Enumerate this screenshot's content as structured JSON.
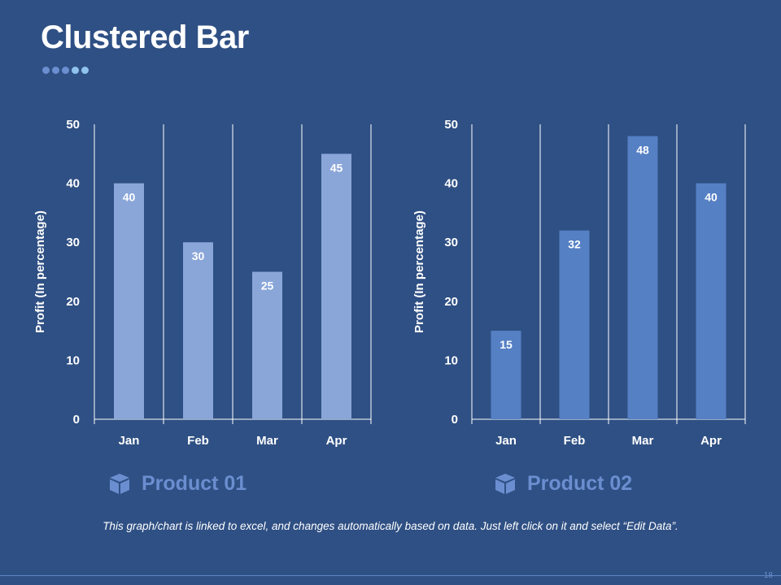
{
  "slide": {
    "title": "Clustered Bar",
    "dot_colors": [
      "#6b8ed0",
      "#6b8ed0",
      "#6b8ed0",
      "#8fc3ee",
      "#8fc3ee"
    ],
    "note": "This graph/chart is linked to excel, and changes automatically based on data. Just left click on it and select “Edit Data”.",
    "page_number": "18"
  },
  "products": [
    {
      "name": "Product 01",
      "icon": "box-icon"
    },
    {
      "name": "Product 02",
      "icon": "box-icon"
    }
  ],
  "chart_data": [
    {
      "type": "bar",
      "categories": [
        "Jan",
        "Feb",
        "Mar",
        "Apr"
      ],
      "values": [
        40,
        30,
        25,
        45
      ],
      "ylabel": "Profit  (In percentage)",
      "ylim": [
        0,
        50
      ],
      "yticks": [
        0,
        10,
        20,
        30,
        40,
        50
      ],
      "bar_color": "#8aa6d8",
      "legend": "Product 01"
    },
    {
      "type": "bar",
      "categories": [
        "Jan",
        "Feb",
        "Mar",
        "Apr"
      ],
      "values": [
        15,
        32,
        48,
        40
      ],
      "ylabel": "Profit  (In percentage)",
      "ylim": [
        0,
        50
      ],
      "yticks": [
        0,
        10,
        20,
        30,
        40,
        50
      ],
      "bar_color": "#5580c4",
      "legend": "Product 02"
    }
  ]
}
